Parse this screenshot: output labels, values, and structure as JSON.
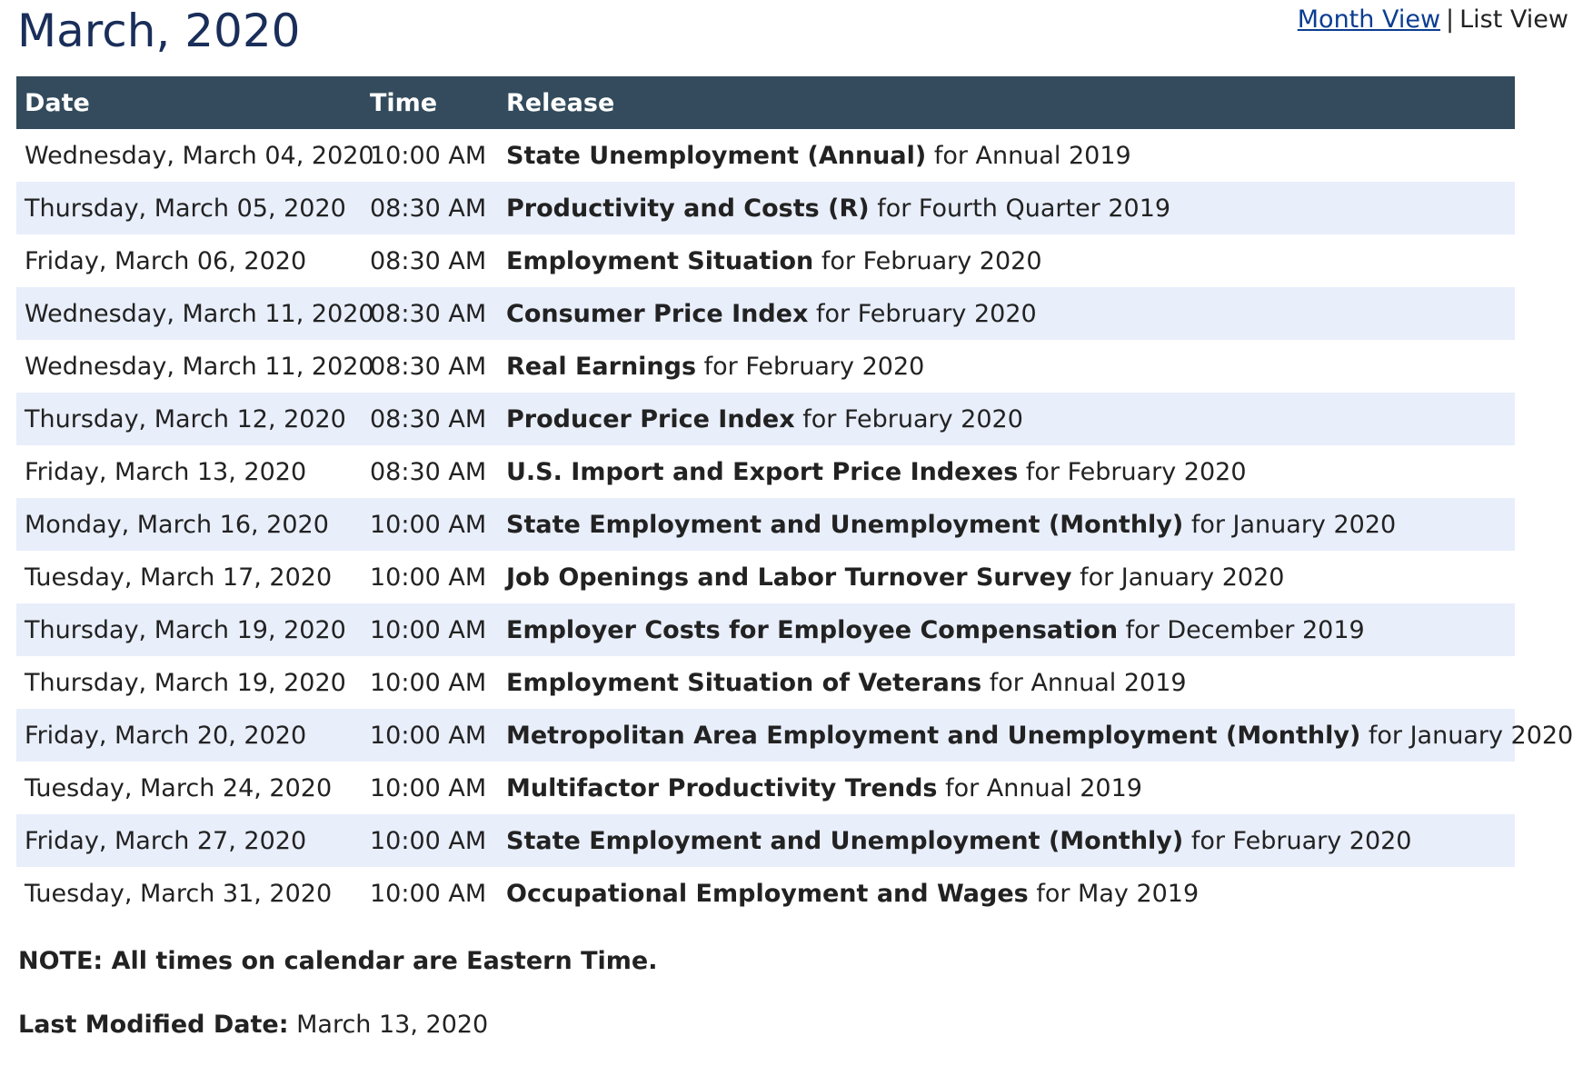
{
  "page": {
    "title": "March, 2020"
  },
  "view_toggle": {
    "month_view": "Month View",
    "separator": "|",
    "list_view": "List View"
  },
  "table": {
    "headers": {
      "date": "Date",
      "time": "Time",
      "release": "Release"
    },
    "rows": [
      {
        "date": "Wednesday, March 04, 2020",
        "time": "10:00 AM",
        "release": "State Unemployment (Annual)",
        "period": "for Annual 2019"
      },
      {
        "date": "Thursday, March 05, 2020",
        "time": "08:30 AM",
        "release": "Productivity and Costs (R)",
        "period": "for Fourth Quarter 2019"
      },
      {
        "date": "Friday, March 06, 2020",
        "time": "08:30 AM",
        "release": "Employment Situation",
        "period": "for February 2020"
      },
      {
        "date": "Wednesday, March 11, 2020",
        "time": "08:30 AM",
        "release": "Consumer Price Index",
        "period": "for February 2020"
      },
      {
        "date": "Wednesday, March 11, 2020",
        "time": "08:30 AM",
        "release": "Real Earnings",
        "period": "for February 2020"
      },
      {
        "date": "Thursday, March 12, 2020",
        "time": "08:30 AM",
        "release": "Producer Price Index",
        "period": "for February 2020"
      },
      {
        "date": "Friday, March 13, 2020",
        "time": "08:30 AM",
        "release": "U.S. Import and Export Price Indexes",
        "period": "for February 2020"
      },
      {
        "date": "Monday, March 16, 2020",
        "time": "10:00 AM",
        "release": "State Employment and Unemployment (Monthly)",
        "period": "for January 2020"
      },
      {
        "date": "Tuesday, March 17, 2020",
        "time": "10:00 AM",
        "release": "Job Openings and Labor Turnover Survey",
        "period": "for January 2020"
      },
      {
        "date": "Thursday, March 19, 2020",
        "time": "10:00 AM",
        "release": "Employer Costs for Employee Compensation",
        "period": "for December 2019"
      },
      {
        "date": "Thursday, March 19, 2020",
        "time": "10:00 AM",
        "release": "Employment Situation of Veterans",
        "period": "for Annual 2019"
      },
      {
        "date": "Friday, March 20, 2020",
        "time": "10:00 AM",
        "release": "Metropolitan Area Employment and Unemployment (Monthly)",
        "period": "for January 2020"
      },
      {
        "date": "Tuesday, March 24, 2020",
        "time": "10:00 AM",
        "release": "Multifactor Productivity Trends",
        "period": "for Annual 2019"
      },
      {
        "date": "Friday, March 27, 2020",
        "time": "10:00 AM",
        "release": "State Employment and Unemployment (Monthly)",
        "period": "for February 2020"
      },
      {
        "date": "Tuesday, March 31, 2020",
        "time": "10:00 AM",
        "release": "Occupational Employment and Wages",
        "period": "for May 2019"
      }
    ]
  },
  "footer": {
    "note": "NOTE: All times on calendar are Eastern Time.",
    "last_modified_label": "Last Modified Date:",
    "last_modified_value": "March 13, 2020"
  },
  "colors": {
    "title": "#1a2e5a",
    "header_bg": "#334b5c",
    "row_alt_bg": "#e8eefa",
    "link": "#0b3d91"
  }
}
